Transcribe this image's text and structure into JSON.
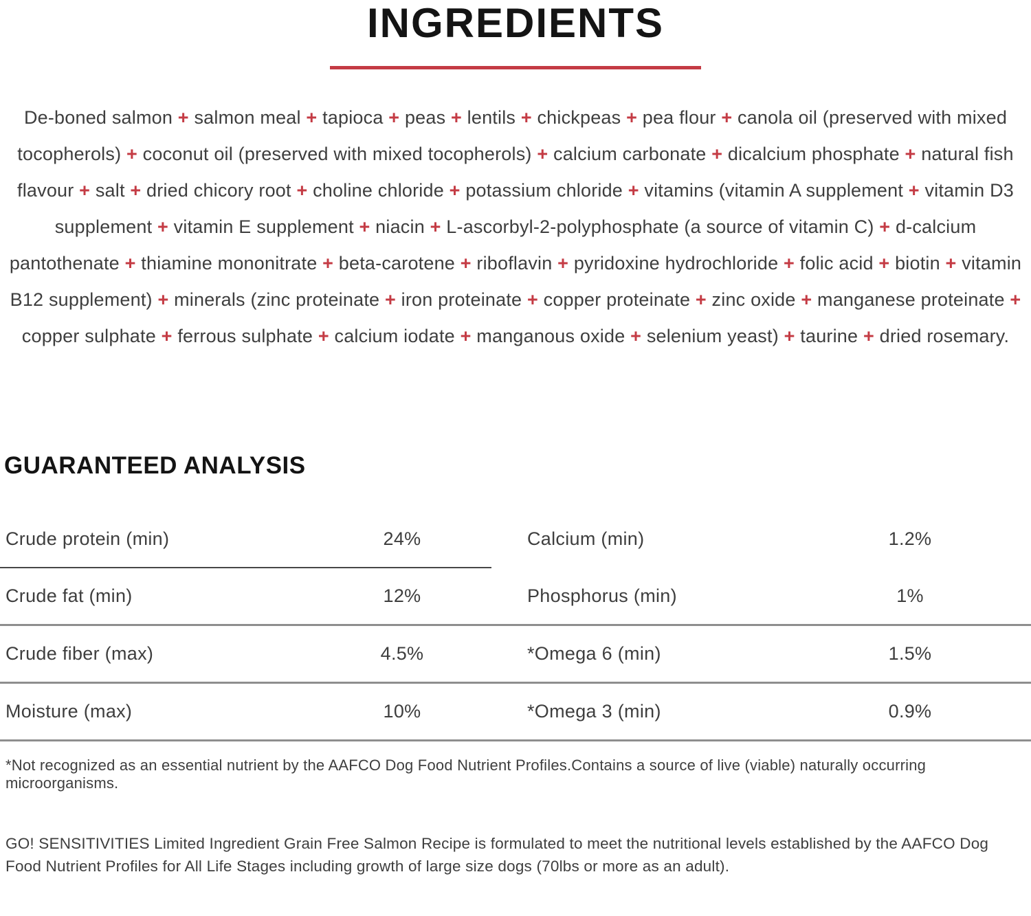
{
  "colors": {
    "accent_red": "#c43b44",
    "heading_text": "#141414",
    "body_text": "#3e3e3e",
    "divider_dark": "#474747",
    "divider_gray": "#8e8e8e"
  },
  "ingredients": {
    "title": "INGREDIENTS",
    "separator": "+",
    "items": [
      "De-boned salmon",
      "salmon meal",
      "tapioca",
      "peas",
      "lentils",
      "chickpeas",
      "pea flour",
      "canola oil (preserved with mixed tocopherols)",
      "coconut oil (preserved with mixed tocopherols)",
      "calcium carbonate",
      "dicalcium phosphate",
      "natural fish flavour",
      "salt",
      "dried chicory root",
      "choline chloride",
      "potassium chloride",
      "vitamins (vitamin A supplement",
      "vitamin D3 supplement",
      "vitamin E supplement",
      "niacin",
      "L-ascorbyl-2-polyphosphate (a source of vitamin C)",
      "d-calcium pantothenate",
      "thiamine mononitrate",
      "beta-carotene",
      "riboflavin",
      "pyridoxine hydrochloride",
      "folic acid",
      "biotin",
      "vitamin B12 supplement)",
      "minerals (zinc proteinate",
      "iron proteinate",
      "copper proteinate",
      "zinc oxide",
      "manganese proteinate",
      "copper sulphate",
      "ferrous sulphate",
      "calcium iodate",
      "manganous oxide",
      "selenium yeast)",
      "taurine",
      "dried rosemary."
    ]
  },
  "guaranteed_analysis": {
    "title": "GUARANTEED ANALYSIS",
    "rows": [
      {
        "left": {
          "label": "Crude protein (min)",
          "value": "24%"
        },
        "right": {
          "label": "Calcium (min)",
          "value": "1.2%"
        }
      },
      {
        "left": {
          "label": "Crude fat (min)",
          "value": "12%"
        },
        "right": {
          "label": "Phosphorus (min)",
          "value": "1%"
        }
      },
      {
        "left": {
          "label": "Crude fiber (max)",
          "value": "4.5%"
        },
        "right": {
          "label": "*Omega 6 (min)",
          "value": "1.5%"
        }
      },
      {
        "left": {
          "label": "Moisture (max)",
          "value": "10%"
        },
        "right": {
          "label": "*Omega 3 (min)",
          "value": "0.9%"
        }
      }
    ]
  },
  "footnotes": {
    "aafco_note": "*Not recognized as an essential nutrient by the AAFCO Dog Food Nutrient Profiles.Contains a source of live (viable) naturally occurring microorganisms.",
    "formulation_statement": "GO! SENSITIVITIES Limited Ingredient Grain Free Salmon Recipe is formulated to meet the nutritional levels established by the AAFCO Dog Food Nutrient Profiles for All Life Stages including growth of large size dogs (70lbs or more as an adult)."
  }
}
